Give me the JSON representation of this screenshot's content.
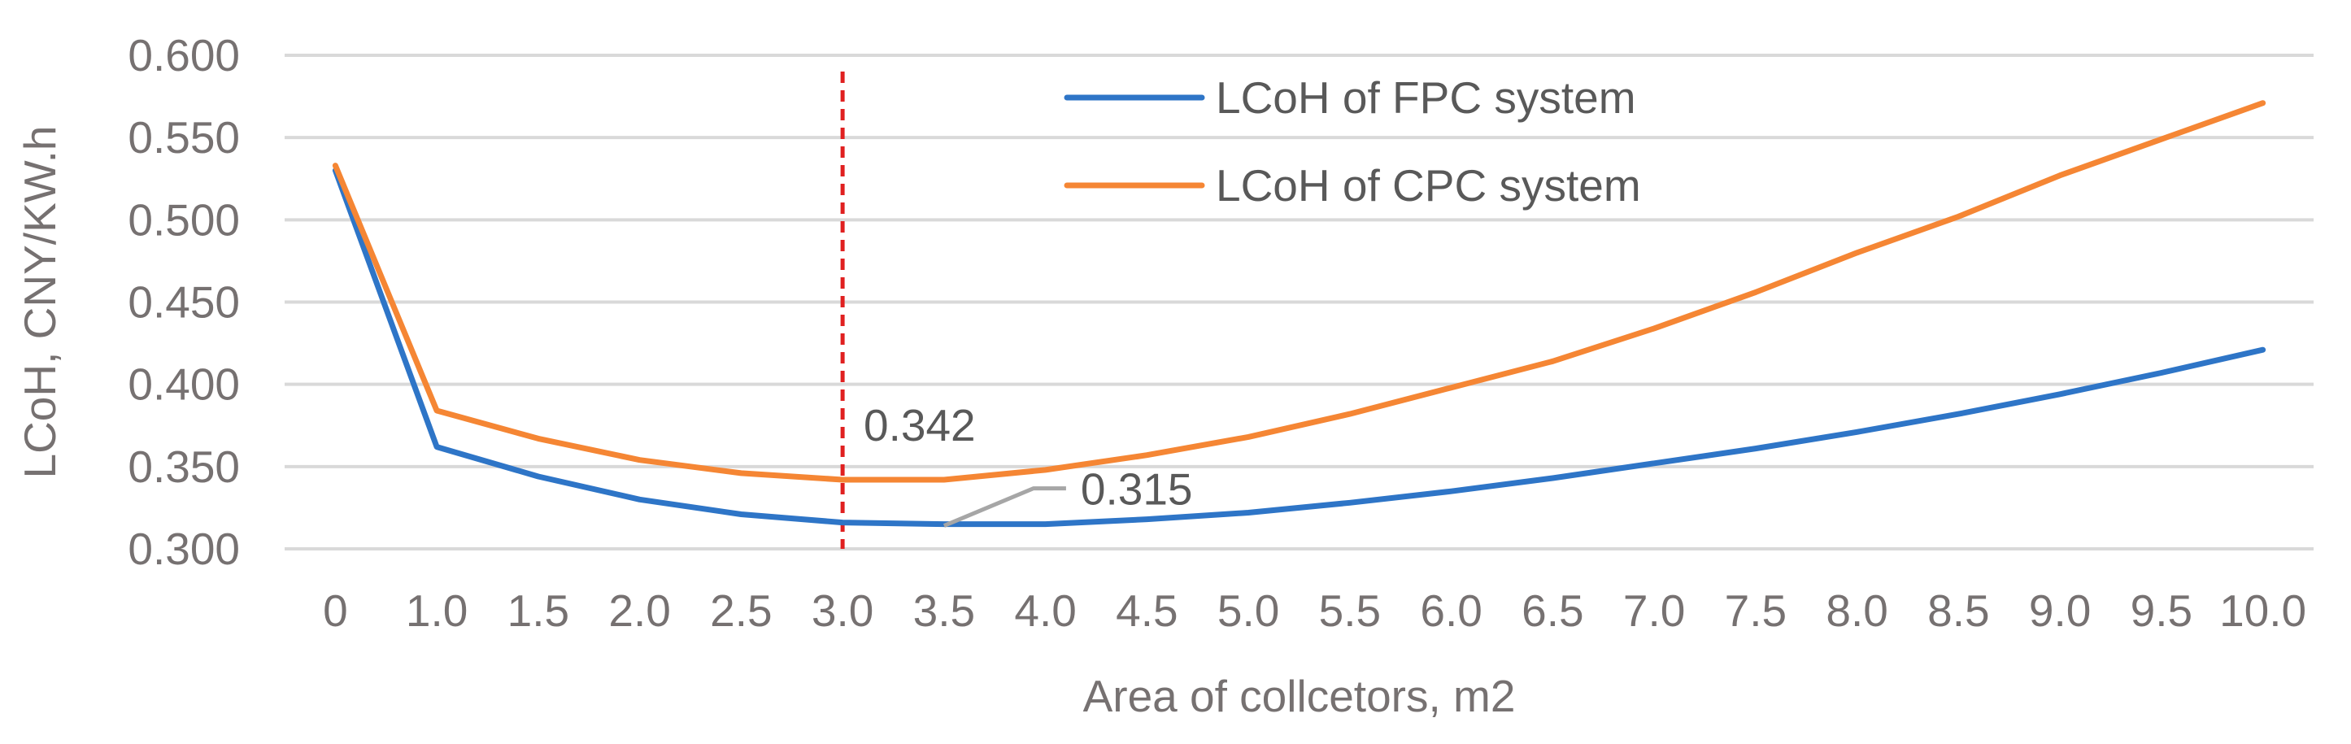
{
  "chart_data": {
    "type": "line",
    "xlabel": "Area of collcetors, m2",
    "ylabel": "LCoH, CNY/KW.h",
    "categories": [
      "0",
      "1.0",
      "1.5",
      "2.0",
      "2.5",
      "3.0",
      "3.5",
      "4.0",
      "4.5",
      "5.0",
      "5.5",
      "6.0",
      "6.5",
      "7.0",
      "7.5",
      "8.0",
      "8.5",
      "9.0",
      "9.5",
      "10.0"
    ],
    "ylim": [
      0.3,
      0.6
    ],
    "yticks": [
      "0.300",
      "0.350",
      "0.400",
      "0.450",
      "0.500",
      "0.550",
      "0.600"
    ],
    "grid": true,
    "legend_position": "top-center",
    "series": [
      {
        "name": "LCoH of  FPC system",
        "color": "#2E75C7",
        "values": [
          0.53,
          0.362,
          0.344,
          0.33,
          0.321,
          0.316,
          0.315,
          0.315,
          0.318,
          0.322,
          0.328,
          0.335,
          0.343,
          0.352,
          0.361,
          0.371,
          0.382,
          0.394,
          0.407,
          0.421
        ]
      },
      {
        "name": "LCoH of  CPC system",
        "color": "#F58634",
        "values": [
          0.533,
          0.384,
          0.367,
          0.354,
          0.346,
          0.342,
          0.342,
          0.348,
          0.357,
          0.368,
          0.382,
          0.398,
          0.414,
          0.434,
          0.456,
          0.48,
          0.502,
          0.527,
          0.549,
          0.571
        ]
      }
    ],
    "annotations": [
      {
        "text": "0.342",
        "series": "LCoH of  CPC system",
        "category": "3.0"
      },
      {
        "text": "0.315",
        "series": "LCoH of  FPC system",
        "category": "3.5"
      }
    ],
    "reference_line": {
      "category": "3.0",
      "color": "#e02020",
      "style": "dashed"
    }
  }
}
